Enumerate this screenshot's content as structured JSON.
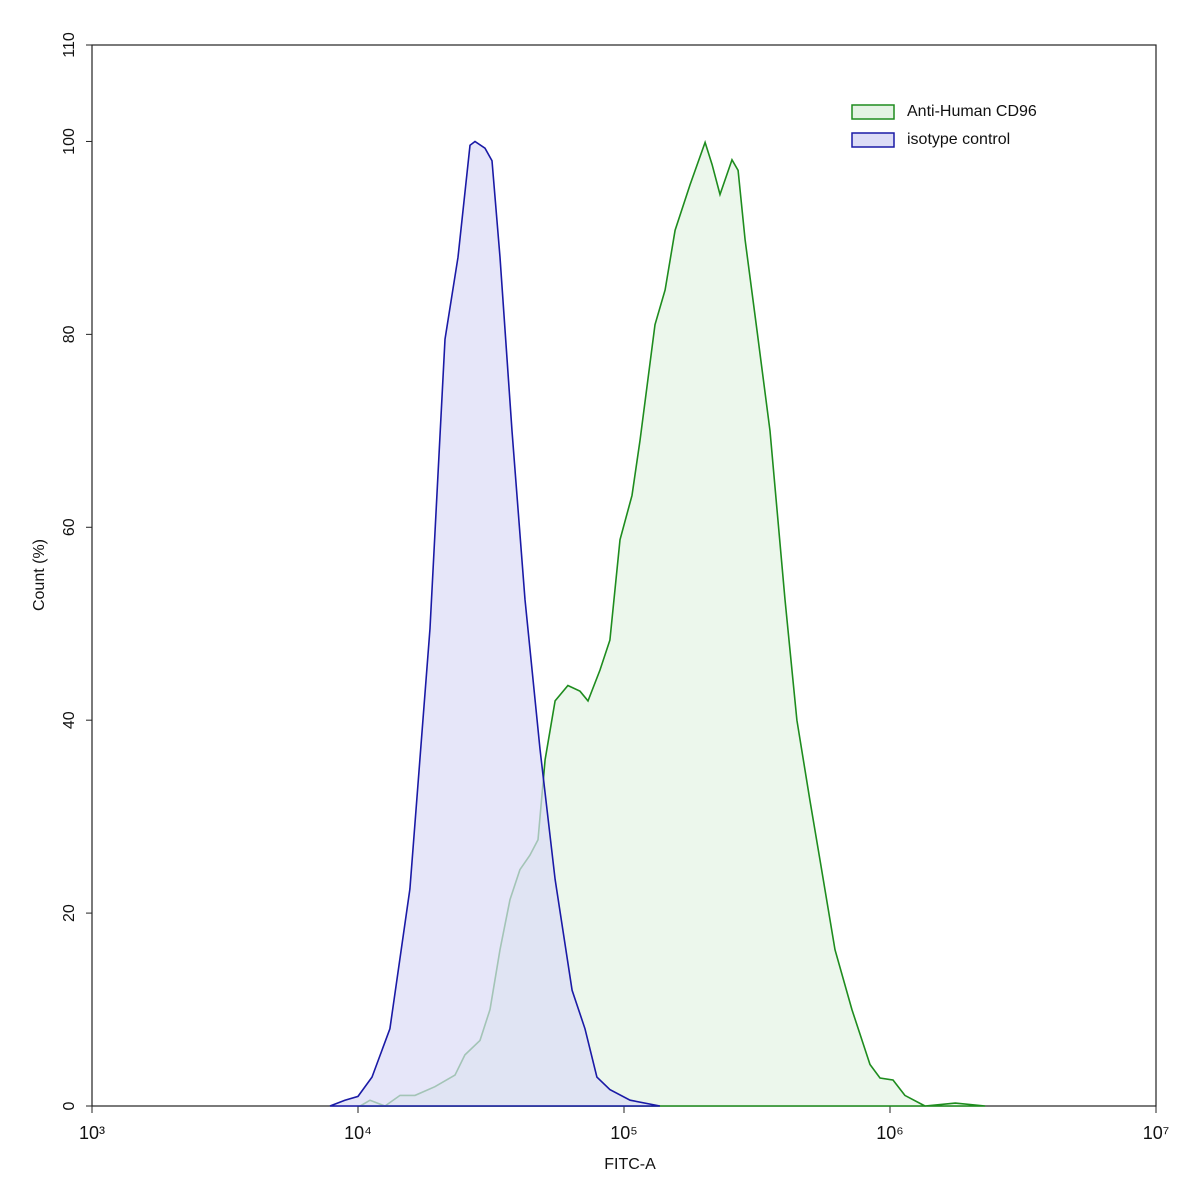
{
  "chart_data": {
    "type": "area",
    "xlabel": "FITC-A",
    "ylabel": "Count  (%)",
    "xscale": "log",
    "xlim": [
      1000,
      10000000
    ],
    "xticks": [
      {
        "value": 1000,
        "label": "10³"
      },
      {
        "value": 10000,
        "label": "10⁴"
      },
      {
        "value": 100000,
        "label": "10⁵"
      },
      {
        "value": 1000000,
        "label": "10⁶"
      },
      {
        "value": 10000000,
        "label": "10⁷"
      }
    ],
    "ylim": [
      0,
      110
    ],
    "yticks": [
      0,
      20,
      40,
      60,
      80,
      100,
      110
    ],
    "legend": "upper right",
    "series": [
      {
        "name": "Anti-Human CD96",
        "color": "#1e8c1e",
        "fill": "#e4f3e4",
        "x": [
          10190,
          11090,
          12630,
          14390,
          16380,
          19450,
          23160,
          25230,
          28750,
          31350,
          34180,
          37260,
          40620,
          44290,
          47500,
          50490,
          55080,
          61520,
          68330,
          73240,
          81240,
          88500,
          96600,
          107200,
          114900,
          130800,
          142700,
          155600,
          177100,
          201700,
          214300,
          229600,
          254700,
          268500,
          285200,
          316300,
          354000,
          402900,
          446700,
          500000,
          545600,
          621000,
          719300,
          841000,
          916700,
          1026000,
          1138000,
          1354000,
          1760000,
          2280000
        ],
        "values": [
          0,
          0.6,
          0,
          1.1,
          1.1,
          2,
          3.2,
          5.3,
          6.8,
          10,
          16.2,
          21.4,
          24.5,
          26,
          27.6,
          35.9,
          42,
          43.6,
          43,
          42,
          45.2,
          48.3,
          58.7,
          63.3,
          69,
          81,
          84.6,
          90.8,
          95.5,
          99.9,
          97.6,
          94.5,
          98.1,
          97,
          89.8,
          80.4,
          70,
          52.5,
          40,
          31.7,
          25.5,
          16.2,
          10,
          4.3,
          2.9,
          2.7,
          1.1,
          0,
          0.3,
          0
        ]
      },
      {
        "name": "isotype control",
        "color": "#1a1aa6",
        "fill": "#dcdcf6",
        "x": [
          7850,
          8930,
          10000,
          11290,
          13180,
          15670,
          18650,
          21240,
          23770,
          26370,
          27540,
          30010,
          31900,
          34180,
          37930,
          42460,
          48330,
          55080,
          63800,
          71320,
          79060,
          88500,
          105400,
          136500
        ],
        "values": [
          0,
          0.6,
          1,
          3,
          8,
          22.5,
          49.5,
          79.5,
          88,
          99.6,
          100,
          99.3,
          98,
          88,
          70,
          52.5,
          37,
          23.5,
          12,
          8,
          3,
          1.7,
          0.6,
          0
        ]
      }
    ]
  }
}
